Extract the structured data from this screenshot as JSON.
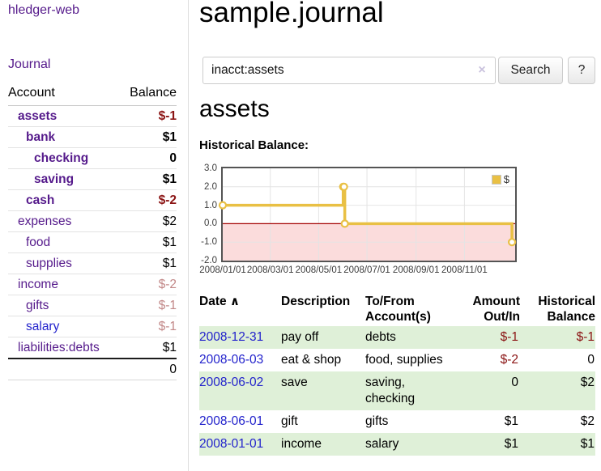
{
  "colors": {
    "link_purple": "#551a8b",
    "link_blue": "#2323cc",
    "negative_strong": "#8b1414",
    "negative_soft": "#c28888",
    "row_green": "#dff0d8",
    "chart_line": "#e9c044",
    "chart_fill_negative": "#fbdcdc",
    "chart_zero": "#a40000",
    "chart_grid": "#e4e4e4",
    "chart_border": "#545454",
    "sidebar_border": "#dddddd",
    "button_border": "#cccccc",
    "input_border": "#cccccc",
    "clear_icon": "#c9c2dd"
  },
  "sidebar": {
    "app_title": "hledger-web",
    "nav": {
      "journal_label": "Journal"
    },
    "accounts_table": {
      "headers": {
        "account": "Account",
        "balance": "Balance"
      },
      "rows": [
        {
          "name": "assets",
          "balance": "$-1",
          "level": 1,
          "in_filter": true,
          "negative": "strong"
        },
        {
          "name": "bank",
          "balance": "$1",
          "level": 2,
          "in_filter": true
        },
        {
          "name": "checking",
          "balance": "0",
          "level": 3,
          "in_filter": true
        },
        {
          "name": "saving",
          "balance": "$1",
          "level": 3,
          "in_filter": true
        },
        {
          "name": "cash",
          "balance": "$-2",
          "level": 2,
          "in_filter": true,
          "negative": "strong"
        },
        {
          "name": "expenses",
          "balance": "$2",
          "level": 1
        },
        {
          "name": "food",
          "balance": "$1",
          "level": 2
        },
        {
          "name": "supplies",
          "balance": "$1",
          "level": 2
        },
        {
          "name": "income",
          "balance": "$-2",
          "level": 1,
          "negative": "soft"
        },
        {
          "name": "gifts",
          "balance": "$-1",
          "level": 2,
          "negative": "soft"
        },
        {
          "name": "salary",
          "balance": "$-1",
          "level": 2,
          "negative": "soft",
          "link_blue": true
        },
        {
          "name": "liabilities:debts",
          "balance": "$1",
          "level": 1
        }
      ],
      "total": "0"
    }
  },
  "main": {
    "title": "sample.journal",
    "search": {
      "value": "inacct:assets",
      "clear_icon": "×",
      "button_label": "Search",
      "help_label": "?"
    },
    "account_heading": "assets",
    "chart_heading": "Historical Balance:",
    "register": {
      "headers": {
        "date": "Date",
        "sort_icon": "∧",
        "description": "Description",
        "accounts": "To/From\nAccount(s)",
        "amount": "Amount\nOut/In",
        "balance": "Historical\nBalance"
      },
      "rows": [
        {
          "date": "2008-12-31",
          "description": "pay off",
          "accounts": "debts",
          "amount": "$-1",
          "balance": "$-1"
        },
        {
          "date": "2008-06-03",
          "description": "eat & shop",
          "accounts": "food, supplies",
          "amount": "$-2",
          "balance": "0"
        },
        {
          "date": "2008-06-02",
          "description": "save",
          "accounts": "saving, checking",
          "amount": "0",
          "balance": "$2"
        },
        {
          "date": "2008-06-01",
          "description": "gift",
          "accounts": "gifts",
          "amount": "$1",
          "balance": "$2"
        },
        {
          "date": "2008-01-01",
          "description": "income",
          "accounts": "salary",
          "amount": "$1",
          "balance": "$1"
        }
      ]
    }
  },
  "chart_data": {
    "type": "line",
    "step": true,
    "title": "Historical Balance:",
    "legend_position": "top-right",
    "grid": true,
    "axis": {
      "xmin": "2008-01-01",
      "xmax": "2009-01-04",
      "ymin": -2,
      "ymax": 3
    },
    "y_ticks": [
      3.0,
      2.0,
      1.0,
      0.0,
      -1.0,
      -2.0
    ],
    "x_ticks": [
      {
        "date": "2008-01-01",
        "label": "2008/01/01"
      },
      {
        "date": "2008-03-01",
        "label": "2008/03/01"
      },
      {
        "date": "2008-05-01",
        "label": "2008/05/01"
      },
      {
        "date": "2008-07-01",
        "label": "2008/07/01"
      },
      {
        "date": "2008-09-01",
        "label": "2008/09/01"
      },
      {
        "date": "2008-11-01",
        "label": "2008/11/01"
      }
    ],
    "x_grid": [
      "2008-03-01",
      "2008-05-01",
      "2008-07-01",
      "2008-09-01",
      "2008-11-01"
    ],
    "series": [
      {
        "name": "$",
        "color": "#e9c044",
        "points": [
          [
            "2008-01-01",
            1
          ],
          [
            "2008-06-01",
            2
          ],
          [
            "2008-06-02",
            2
          ],
          [
            "2008-06-03",
            0
          ],
          [
            "2008-12-31",
            -1
          ]
        ]
      }
    ]
  }
}
